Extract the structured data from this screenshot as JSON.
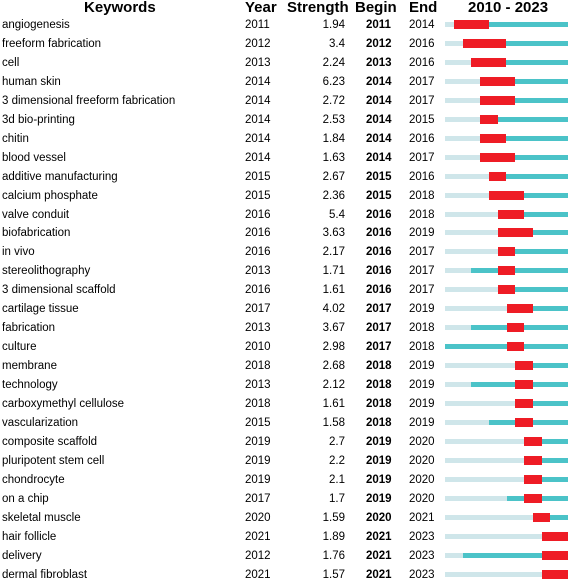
{
  "chart_data": {
    "type": "table",
    "title": "",
    "headers": {
      "keywords": "Keywords",
      "year": "Year",
      "strength": "Strength",
      "begin": "Begin",
      "end": "End",
      "timeline": "2010 - 2023"
    },
    "range": [
      2010,
      2023
    ],
    "colors": {
      "burst": "#ee1c25",
      "active": "#4bc3c8",
      "inactive": "#cfe6ea"
    },
    "rows": [
      {
        "keyword": "angiogenesis",
        "year": 2011,
        "strength": "1.94",
        "begin": 2011,
        "end": 2014
      },
      {
        "keyword": "freeform fabrication",
        "year": 2012,
        "strength": "3.4",
        "begin": 2012,
        "end": 2016
      },
      {
        "keyword": "cell",
        "year": 2013,
        "strength": "2.24",
        "begin": 2013,
        "end": 2016
      },
      {
        "keyword": "human skin",
        "year": 2014,
        "strength": "6.23",
        "begin": 2014,
        "end": 2017
      },
      {
        "keyword": "3 dimensional freeform fabrication",
        "year": 2014,
        "strength": "2.72",
        "begin": 2014,
        "end": 2017
      },
      {
        "keyword": "3d bio-printing",
        "year": 2014,
        "strength": "2.53",
        "begin": 2014,
        "end": 2015
      },
      {
        "keyword": "chitin",
        "year": 2014,
        "strength": "1.84",
        "begin": 2014,
        "end": 2016
      },
      {
        "keyword": "blood vessel",
        "year": 2014,
        "strength": "1.63",
        "begin": 2014,
        "end": 2017
      },
      {
        "keyword": "additive manufacturing",
        "year": 2015,
        "strength": "2.67",
        "begin": 2015,
        "end": 2016
      },
      {
        "keyword": "calcium phosphate",
        "year": 2015,
        "strength": "2.36",
        "begin": 2015,
        "end": 2018
      },
      {
        "keyword": "valve conduit",
        "year": 2016,
        "strength": "5.4",
        "begin": 2016,
        "end": 2018
      },
      {
        "keyword": "biofabrication",
        "year": 2016,
        "strength": "3.63",
        "begin": 2016,
        "end": 2019
      },
      {
        "keyword": "in vivo",
        "year": 2016,
        "strength": "2.17",
        "begin": 2016,
        "end": 2017
      },
      {
        "keyword": "stereolithography",
        "year": 2013,
        "strength": "1.71",
        "begin": 2016,
        "end": 2017
      },
      {
        "keyword": "3 dimensional scaffold",
        "year": 2016,
        "strength": "1.61",
        "begin": 2016,
        "end": 2017
      },
      {
        "keyword": "cartilage tissue",
        "year": 2017,
        "strength": "4.02",
        "begin": 2017,
        "end": 2019
      },
      {
        "keyword": "fabrication",
        "year": 2013,
        "strength": "3.67",
        "begin": 2017,
        "end": 2018
      },
      {
        "keyword": "culture",
        "year": 2010,
        "strength": "2.98",
        "begin": 2017,
        "end": 2018
      },
      {
        "keyword": "membrane",
        "year": 2018,
        "strength": "2.68",
        "begin": 2018,
        "end": 2019
      },
      {
        "keyword": "technology",
        "year": 2013,
        "strength": "2.12",
        "begin": 2018,
        "end": 2019
      },
      {
        "keyword": "carboxymethyl cellulose",
        "year": 2018,
        "strength": "1.61",
        "begin": 2018,
        "end": 2019
      },
      {
        "keyword": "vascularization",
        "year": 2015,
        "strength": "1.58",
        "begin": 2018,
        "end": 2019
      },
      {
        "keyword": "composite scaffold",
        "year": 2019,
        "strength": "2.7",
        "begin": 2019,
        "end": 2020
      },
      {
        "keyword": "pluripotent stem cell",
        "year": 2019,
        "strength": "2.2",
        "begin": 2019,
        "end": 2020
      },
      {
        "keyword": "chondrocyte",
        "year": 2019,
        "strength": "2.1",
        "begin": 2019,
        "end": 2020
      },
      {
        "keyword": "on a chip",
        "year": 2017,
        "strength": "1.7",
        "begin": 2019,
        "end": 2020
      },
      {
        "keyword": "skeletal muscle",
        "year": 2020,
        "strength": "1.59",
        "begin": 2020,
        "end": 2021
      },
      {
        "keyword": "hair follicle",
        "year": 2021,
        "strength": "1.89",
        "begin": 2021,
        "end": 2023
      },
      {
        "keyword": "delivery",
        "year": 2012,
        "strength": "1.76",
        "begin": 2021,
        "end": 2023
      },
      {
        "keyword": "dermal fibroblast",
        "year": 2021,
        "strength": "1.57",
        "begin": 2021,
        "end": 2023
      }
    ]
  }
}
